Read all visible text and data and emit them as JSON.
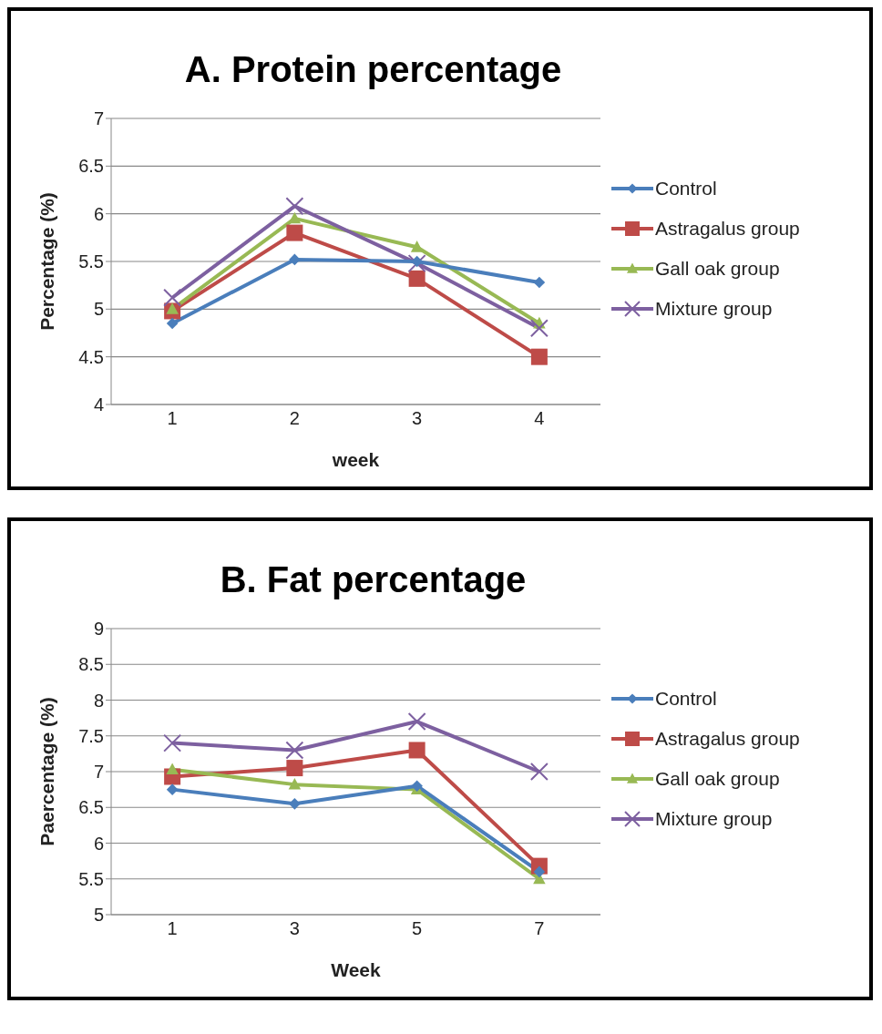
{
  "chart_data": [
    {
      "type": "line",
      "title": "A. Protein percentage",
      "xlabel": "week",
      "ylabel": "Percentage (%)",
      "categories": [
        "1",
        "2",
        "3",
        "4"
      ],
      "ylim": [
        4,
        7
      ],
      "yticks": [
        4,
        4.5,
        5,
        5.5,
        6,
        6.5,
        7
      ],
      "grid": "y",
      "legend": "right",
      "line_style": "solid",
      "series": [
        {
          "name": "Control",
          "color": "#4a7ebb",
          "marker": "diamond",
          "values": [
            4.85,
            5.52,
            5.5,
            5.28
          ]
        },
        {
          "name": "Astragalus group",
          "color": "#be4b48",
          "marker": "square",
          "values": [
            4.98,
            5.8,
            5.32,
            4.5
          ]
        },
        {
          "name": "Gall oak group",
          "color": "#98b954",
          "marker": "triangle",
          "values": [
            5.0,
            5.95,
            5.65,
            4.85
          ]
        },
        {
          "name": "Mixture group",
          "color": "#7d60a0",
          "marker": "cross",
          "values": [
            5.12,
            6.08,
            5.48,
            4.8
          ]
        }
      ]
    },
    {
      "type": "line",
      "title": "B. Fat percentage",
      "xlabel": "Week",
      "ylabel": "Paercentage (%)",
      "categories": [
        "1",
        "3",
        "5",
        "7"
      ],
      "ylim": [
        5,
        9
      ],
      "yticks": [
        5,
        5.5,
        6,
        6.5,
        7,
        7.5,
        8,
        8.5,
        9
      ],
      "grid": "y",
      "legend": "right",
      "line_style": "solid",
      "series": [
        {
          "name": "Control",
          "color": "#4a7ebb",
          "marker": "diamond",
          "values": [
            6.75,
            6.55,
            6.8,
            5.6
          ]
        },
        {
          "name": "Astragalus group",
          "color": "#be4b48",
          "marker": "square",
          "values": [
            6.93,
            7.05,
            7.3,
            5.68
          ]
        },
        {
          "name": "Gall oak group",
          "color": "#98b954",
          "marker": "triangle",
          "values": [
            7.03,
            6.82,
            6.75,
            5.5
          ]
        },
        {
          "name": "Mixture group",
          "color": "#7d60a0",
          "marker": "cross",
          "values": [
            7.4,
            7.3,
            7.7,
            7.0
          ]
        }
      ]
    }
  ]
}
